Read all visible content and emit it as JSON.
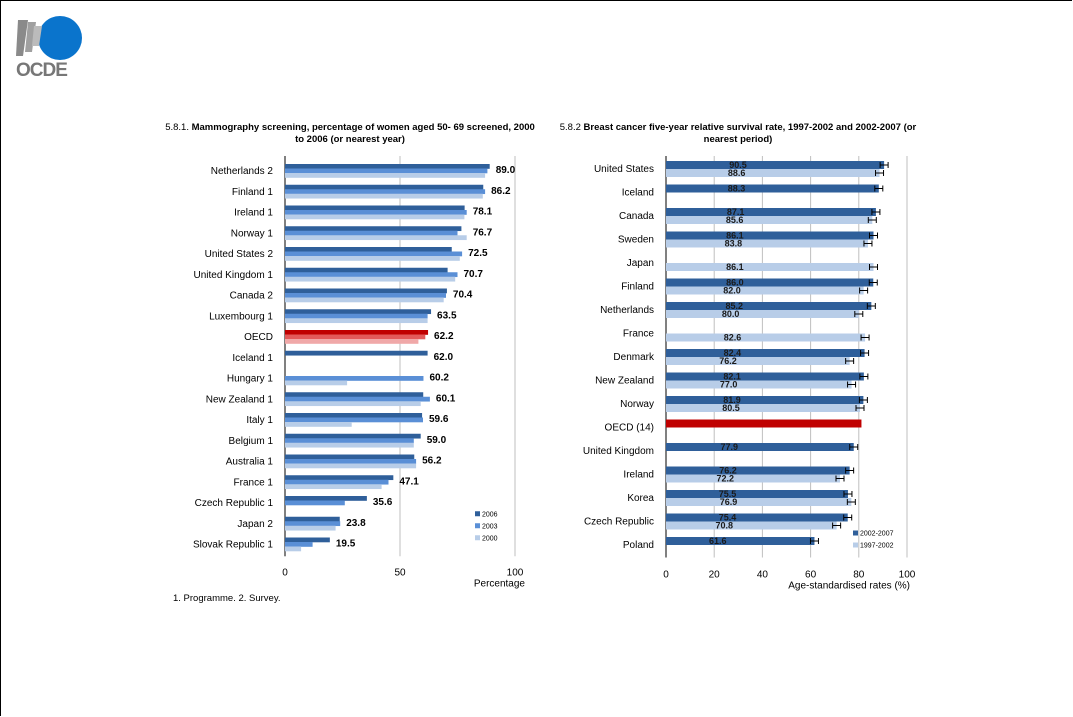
{
  "logo": {
    "text": "OCDE"
  },
  "chart_data": [
    {
      "type": "bar",
      "orientation": "horizontal",
      "title_prefix": "5.8.1.",
      "title": "Mammography screening, percentage of women aged 50- 69 screened, 2000 to 2006 (or nearest year)",
      "xlabel": "Percentage",
      "xlim": [
        0,
        100
      ],
      "xticks": [
        "0",
        "50",
        "100"
      ],
      "grid": true,
      "legend_position": "bottom-right",
      "categories": [
        "Netherlands 2",
        "Finland 1",
        "Ireland 1",
        "Norway 1",
        "United States 2",
        "United Kingdom 1",
        "Canada 2",
        "Luxembourg 1",
        "OECD",
        "Iceland 1",
        "Hungary 1",
        "New Zealand 1",
        "Italy 1",
        "Belgium 1",
        "Australia 1",
        "France 1",
        "Czech Republic 1",
        "Japan 2",
        "Slovak Republic 1"
      ],
      "data_labels": [
        "89.0",
        "86.2",
        "78.1",
        "76.7",
        "72.5",
        "70.7",
        "70.4",
        "63.5",
        "62.2",
        "62.0",
        "60.2",
        "60.1",
        "59.6",
        "59.0",
        "56.2",
        "47.1",
        "35.6",
        "23.8",
        "19.5"
      ],
      "series": [
        {
          "name": "2006",
          "color": "#2f5f9a",
          "values": [
            89.0,
            86.2,
            78.1,
            76.7,
            72.5,
            70.7,
            70.4,
            63.5,
            62.2,
            62.0,
            null,
            60.1,
            59.6,
            59.0,
            56.2,
            47.1,
            35.6,
            23.8,
            19.5
          ]
        },
        {
          "name": "2003",
          "color": "#5a8fd6",
          "values": [
            88.0,
            87.0,
            79.0,
            75.0,
            77.0,
            75.0,
            70.0,
            62.0,
            61.0,
            null,
            60.2,
            63.0,
            60.0,
            56.0,
            57.0,
            45.0,
            26.0,
            24.0,
            12.0
          ]
        },
        {
          "name": "2000",
          "color": "#b8cde8",
          "values": [
            87.0,
            86.0,
            78.0,
            79.0,
            76.0,
            74.0,
            69.0,
            62.0,
            58.0,
            null,
            27.0,
            59.0,
            29.0,
            56.0,
            57.0,
            42.0,
            null,
            22.0,
            7.0
          ]
        }
      ],
      "highlight": {
        "category": "OECD",
        "colors": [
          "#c00000",
          "#e35a5a",
          "#f0a8a8"
        ]
      }
    },
    {
      "type": "bar",
      "orientation": "horizontal",
      "title_prefix": "5.8.2",
      "title": "Breast cancer five-year relative survival rate, 1997-2002 and 2002-2007 (or nearest period)",
      "xlabel": "Age-standardised rates (%)",
      "xlim": [
        0,
        100
      ],
      "xticks": [
        "0",
        "20",
        "40",
        "60",
        "80",
        "100"
      ],
      "grid": true,
      "legend_position": "bottom-right",
      "categories": [
        "United States",
        "Iceland",
        "Canada",
        "Sweden",
        "Japan",
        "Finland",
        "Netherlands",
        "France",
        "Denmark",
        "New Zealand",
        "Norway",
        "OECD (14)",
        "United Kingdom",
        "Ireland",
        "Korea",
        "Czech Republic",
        "Poland"
      ],
      "series": [
        {
          "name": "2002-2007",
          "color": "#2f5f9a",
          "values": [
            90.5,
            88.3,
            87.1,
            86.1,
            null,
            86.0,
            85.2,
            null,
            82.4,
            82.1,
            81.9,
            81.1,
            77.9,
            76.2,
            75.5,
            75.4,
            61.6
          ],
          "labels": [
            "90.5",
            "88.3",
            "87.1",
            "86.1",
            null,
            "86.0",
            "85.2",
            null,
            "82.4",
            "82.1",
            "81.9",
            "81.1",
            "77.9",
            "76.2",
            "75.5",
            "75.4",
            "61.6"
          ]
        },
        {
          "name": "1997-2002",
          "color": "#b8cde8",
          "values": [
            88.6,
            null,
            85.6,
            83.8,
            86.1,
            82.0,
            80.0,
            82.6,
            76.2,
            77.0,
            80.5,
            null,
            null,
            72.2,
            76.9,
            70.8,
            null
          ],
          "labels": [
            "88.6",
            null,
            "85.6",
            "83.8",
            "86.1",
            "82.0",
            "80.0",
            "82.6",
            "76.2",
            "77.0",
            "80.5",
            null,
            null,
            "72.2",
            "76.9",
            "70.8",
            null
          ]
        }
      ],
      "highlight": {
        "category": "OECD (14)",
        "color": "#c00000"
      }
    }
  ],
  "footnote": "1. Programme. 2. Survey."
}
